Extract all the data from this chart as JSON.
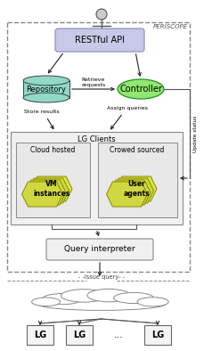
{
  "fig_width": 2.29,
  "fig_height": 3.94,
  "dpi": 100,
  "bg_color": "#ffffff",
  "restful_color": "#c8c8e8",
  "restful_label": "RESTful API",
  "repo_color": "#90d8c8",
  "repo_label": "Repository",
  "ctrl_color": "#90e870",
  "ctrl_label": "Controller",
  "cloud_hosted_label": "Cloud hosted",
  "crowd_sourced_label": "Crowed sourced",
  "query_label": "Query interpreter",
  "vm_label": "VM\ninstances",
  "user_label": "User\nagents",
  "hex_color": "#d8e840",
  "hex_edge_color": "#888800",
  "lg_clients_label": "LG Clients",
  "retrieve_label": "Retrieve\nrequests",
  "store_label": "Store results",
  "assign_label": "Assign queries",
  "update_label": "Update status",
  "issue_label": "- -Issue query- -",
  "periscope_label": "PERISCOPE",
  "lg_labels": [
    "LG",
    "LG",
    "...",
    "LG"
  ],
  "arrow_color": "#222222",
  "box_edge_color": "#888888",
  "dashed_color": "#888888"
}
